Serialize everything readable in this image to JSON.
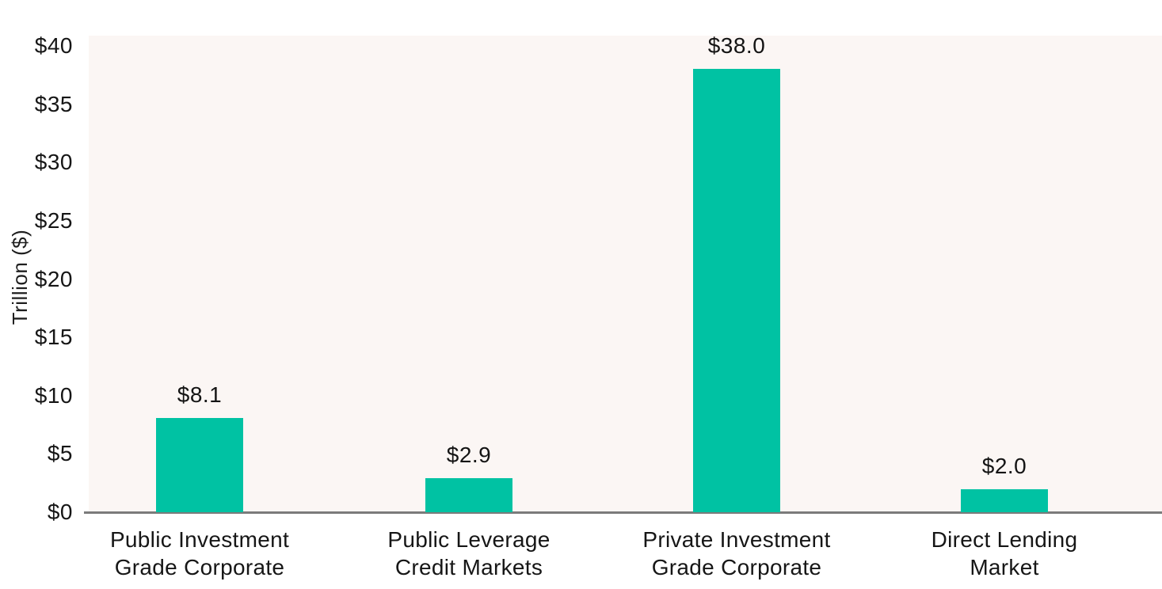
{
  "chart_data": {
    "type": "bar",
    "categories": [
      "Public Investment\nGrade Corporate",
      "Public Leverage\nCredit Markets",
      "Private Investment\nGrade Corporate",
      "Direct Lending\nMarket"
    ],
    "values": [
      8.1,
      2.9,
      38.0,
      2.0
    ],
    "value_labels": [
      "$8.1",
      "$2.9",
      "$38.0",
      "$2.0"
    ],
    "title": "",
    "xlabel": "",
    "ylabel": "Trillion ($)",
    "ylim": [
      0,
      40
    ],
    "yticks": [
      0,
      5,
      10,
      15,
      20,
      25,
      30,
      35,
      40
    ],
    "ytick_labels": [
      "$0",
      "$5",
      "$10",
      "$15",
      "$20",
      "$25",
      "$30",
      "$35",
      "$40"
    ],
    "grid": false,
    "legend": null,
    "colors": {
      "bar": "#00C2A3",
      "plot_background": "#FBF6F4",
      "page_background": "#FFFFFF",
      "axis_line": "#7B7B7B",
      "text": "#161616"
    }
  }
}
